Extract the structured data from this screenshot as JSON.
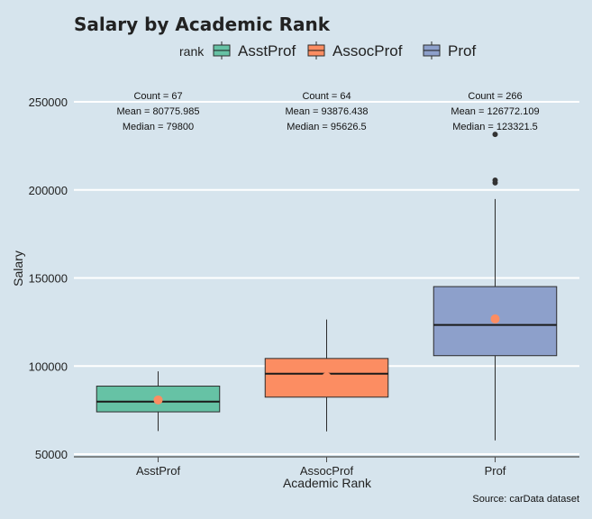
{
  "chart_data": {
    "type": "box",
    "title": "Salary by Academic Rank",
    "xlabel": "Academic Rank",
    "ylabel": "Salary",
    "caption": "Source: carData dataset",
    "legend_title": "rank",
    "legend_position": "top",
    "grid": "horizontal major",
    "ylim": [
      50000,
      260000
    ],
    "yticks": [
      50000,
      100000,
      150000,
      200000,
      250000
    ],
    "categories": [
      "AsstProf",
      "AssocProf",
      "Prof"
    ],
    "colors": [
      "#66c2a5",
      "#fc8d62",
      "#8da0cb"
    ],
    "mean_marker_color": "#fc8d62",
    "boxes": [
      {
        "name": "AsstProf",
        "whisker_low": 63100,
        "q1": 74000,
        "median": 79800,
        "q3": 88600,
        "whisker_high": 97000,
        "mean": 80775.985,
        "outliers": [],
        "labels": [
          "Count = 67",
          "Mean = 80775.985",
          "Median = 79800"
        ]
      },
      {
        "name": "AssocProf",
        "whisker_low": 62884,
        "q1": 82350,
        "median": 95626.5,
        "q3": 104300,
        "whisker_high": 126431,
        "mean": 93876.438,
        "outliers": [],
        "labels": [
          "Count = 64",
          "Mean = 93876.438",
          "Median = 95626.5"
        ]
      },
      {
        "name": "Prof",
        "whisker_low": 57800,
        "q1": 105890,
        "median": 123321.5,
        "q3": 145098,
        "whisker_high": 194800,
        "mean": 126772.109,
        "outliers": [
          204000,
          205500,
          231545
        ],
        "labels": [
          "Count = 266",
          "Mean = 126772.109",
          "Median = 123321.5"
        ]
      }
    ]
  }
}
